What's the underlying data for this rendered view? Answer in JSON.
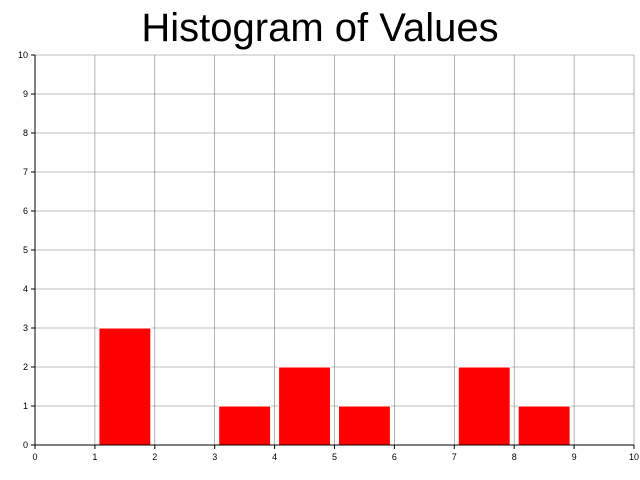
{
  "chart_data": {
    "type": "bar",
    "title": "Histogram of Values",
    "xlabel": "",
    "ylabel": "",
    "xlim": [
      0,
      10
    ],
    "ylim": [
      0,
      10
    ],
    "grid": true,
    "bar_color": "#ff0000",
    "bins": [
      {
        "start": 0,
        "end": 1,
        "count": 0
      },
      {
        "start": 1,
        "end": 2,
        "count": 3
      },
      {
        "start": 2,
        "end": 3,
        "count": 0
      },
      {
        "start": 3,
        "end": 4,
        "count": 1
      },
      {
        "start": 4,
        "end": 5,
        "count": 2
      },
      {
        "start": 5,
        "end": 6,
        "count": 1
      },
      {
        "start": 6,
        "end": 7,
        "count": 0
      },
      {
        "start": 7,
        "end": 8,
        "count": 2
      },
      {
        "start": 8,
        "end": 9,
        "count": 1
      },
      {
        "start": 9,
        "end": 10,
        "count": 0
      }
    ],
    "x_ticks": [
      "0",
      "1",
      "2",
      "3",
      "4",
      "5",
      "6",
      "7",
      "8",
      "9",
      "10"
    ],
    "y_ticks": [
      "0",
      "1",
      "2",
      "3",
      "4",
      "5",
      "6",
      "7",
      "8",
      "9",
      "10"
    ]
  }
}
